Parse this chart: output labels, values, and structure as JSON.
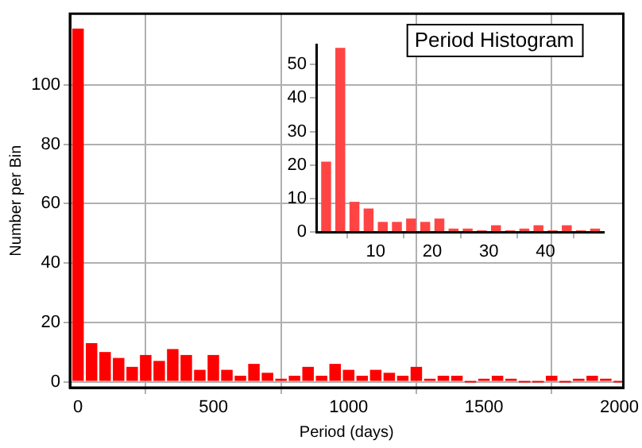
{
  "chart_data": [
    {
      "type": "histogram",
      "title": "Period Histogram",
      "xlabel": "Period (days)",
      "ylabel": "Number per Bin",
      "color": "#ff0000",
      "bins": [
        -25,
        25,
        75,
        125,
        175,
        225,
        275,
        325,
        375,
        425,
        475,
        525,
        575,
        625,
        675,
        725,
        775,
        825,
        875,
        925,
        975,
        1025,
        1075,
        1125,
        1175,
        1225,
        1275,
        1325,
        1375,
        1425,
        1475,
        1525,
        1575,
        1625,
        1675,
        1725,
        1775,
        1825,
        1875,
        1925,
        1975,
        2025
      ],
      "values": [
        119,
        13,
        10,
        8,
        5,
        9,
        7,
        11,
        9,
        4,
        9,
        4,
        2,
        6,
        3,
        1,
        2,
        5,
        2,
        6,
        4,
        2,
        4,
        3,
        2,
        5,
        1,
        2,
        2,
        0,
        1,
        2,
        1,
        0,
        0,
        2,
        0,
        1,
        2,
        1,
        0
      ],
      "xlim": [
        -30,
        2015
      ],
      "xticks": [
        0,
        500,
        1000,
        1500,
        2000
      ],
      "ylim": [
        -2,
        124
      ],
      "yticks": [
        0,
        20,
        40,
        60,
        80,
        100
      ],
      "grid": true,
      "legend": false
    },
    {
      "type": "histogram",
      "color": "#ff4444",
      "bins": [
        0,
        2.5,
        5,
        7.5,
        10,
        12.5,
        15,
        17.5,
        20,
        22.5,
        25,
        27.5,
        30,
        32.5,
        35,
        37.5,
        40,
        42.5,
        45,
        47.5,
        50
      ],
      "values": [
        21,
        55,
        9,
        7,
        3,
        3,
        4,
        3,
        4,
        1,
        1,
        0,
        2,
        0,
        1,
        2,
        0,
        2,
        0,
        1
      ],
      "xlim": [
        -0.5,
        50.3
      ],
      "xticks": [
        10,
        20,
        30,
        40
      ],
      "ylim": [
        0,
        56
      ],
      "yticks": [
        0,
        10,
        20,
        30,
        40,
        50
      ],
      "grid": false,
      "legend": false
    }
  ]
}
